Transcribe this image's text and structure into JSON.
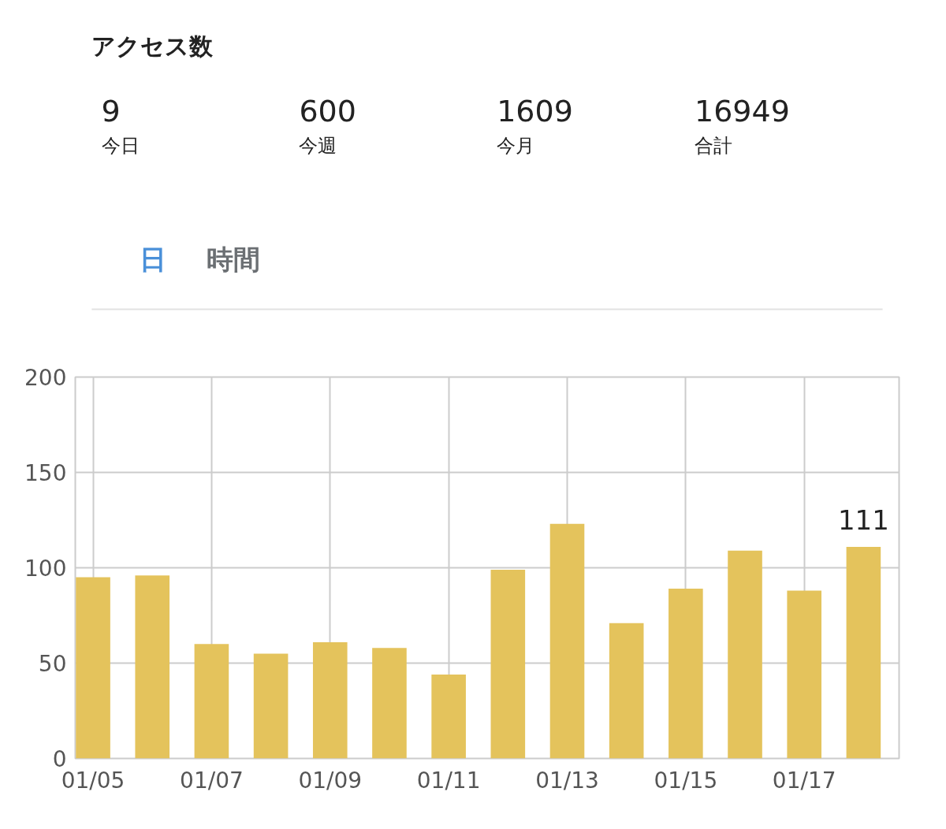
{
  "chart_data": [
    {
      "type": "other",
      "title": "アクセス数",
      "annotations": [
        "9",
        "今日",
        "600",
        "今週",
        "1609",
        "今月",
        "16949",
        "合計",
        "日",
        "時間"
      ]
    },
    {
      "type": "bar",
      "categories": [
        "01/05",
        null,
        "01/07",
        null,
        "01/09",
        null,
        "01/11",
        null,
        "01/13",
        null,
        "01/15",
        null,
        "01/17",
        null
      ],
      "values": [
        95,
        96,
        60,
        55,
        61,
        58,
        44,
        99,
        123,
        71,
        89,
        109,
        88,
        111
      ],
      "value_labels": [
        null,
        null,
        null,
        null,
        null,
        null,
        null,
        null,
        null,
        null,
        null,
        null,
        null,
        "111"
      ],
      "color": "#e4c35c",
      "ylim": [
        0,
        200
      ],
      "yticks": [
        0,
        50,
        100,
        150,
        200
      ],
      "grid": true
    }
  ]
}
